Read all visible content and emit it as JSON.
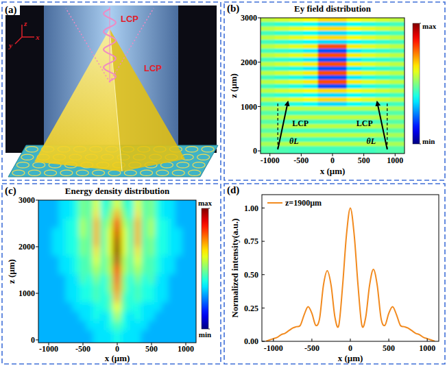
{
  "chart_data": [
    {
      "type": "diagram",
      "panel": "(a)",
      "labels": [
        "LCP",
        "LCP"
      ],
      "axes": [
        "z",
        "x",
        "y"
      ]
    },
    {
      "type": "heatmap",
      "panel": "(b)",
      "title": "Ey field distribution",
      "x_label": "x (μm)",
      "y_label": "z (μm)",
      "xlim": [
        -1150,
        1150
      ],
      "ylim": [
        -60,
        3000
      ],
      "xticks": [
        -1000,
        -500,
        0,
        500,
        1000
      ],
      "yticks": [
        0,
        1000,
        2000,
        3000
      ],
      "annotations": [
        "LCP",
        "θL",
        "LCP",
        "θL"
      ],
      "x": [
        -1035,
        -805,
        -575,
        -345,
        -115,
        115,
        345,
        575,
        805,
        1035
      ],
      "y": [
        2950,
        2850,
        2750,
        2650,
        2550,
        2450,
        2350,
        2250,
        2150,
        2050,
        1950,
        1850,
        1750,
        1650,
        1550,
        1450,
        1350,
        1250,
        1150,
        1050,
        950,
        850,
        750,
        650,
        550,
        450,
        350,
        250,
        150,
        50
      ],
      "z": [
        [
          0.56,
          0.58,
          0.6,
          0.62,
          0.66,
          0.66,
          0.62,
          0.6,
          0.58,
          0.56
        ],
        [
          0.44,
          0.42,
          0.4,
          0.38,
          0.34,
          0.34,
          0.38,
          0.4,
          0.42,
          0.44
        ],
        [
          0.56,
          0.58,
          0.6,
          0.62,
          0.66,
          0.66,
          0.62,
          0.6,
          0.58,
          0.56
        ],
        [
          0.44,
          0.42,
          0.4,
          0.38,
          0.34,
          0.34,
          0.38,
          0.4,
          0.42,
          0.44
        ],
        [
          0.56,
          0.58,
          0.6,
          0.62,
          0.66,
          0.66,
          0.62,
          0.6,
          0.58,
          0.56
        ],
        [
          0.44,
          0.42,
          0.4,
          0.38,
          0.34,
          0.34,
          0.38,
          0.4,
          0.42,
          0.44
        ],
        [
          0.56,
          0.58,
          0.6,
          0.64,
          0.8,
          0.8,
          0.64,
          0.6,
          0.58,
          0.56
        ],
        [
          0.44,
          0.42,
          0.4,
          0.36,
          0.2,
          0.2,
          0.36,
          0.4,
          0.42,
          0.44
        ],
        [
          0.56,
          0.58,
          0.6,
          0.64,
          0.8,
          0.8,
          0.64,
          0.6,
          0.58,
          0.56
        ],
        [
          0.44,
          0.42,
          0.4,
          0.36,
          0.2,
          0.2,
          0.36,
          0.4,
          0.42,
          0.44
        ],
        [
          0.56,
          0.58,
          0.6,
          0.64,
          0.8,
          0.8,
          0.64,
          0.6,
          0.58,
          0.56
        ],
        [
          0.44,
          0.42,
          0.4,
          0.36,
          0.2,
          0.2,
          0.36,
          0.4,
          0.42,
          0.44
        ],
        [
          0.56,
          0.58,
          0.6,
          0.64,
          0.8,
          0.8,
          0.64,
          0.6,
          0.58,
          0.56
        ],
        [
          0.44,
          0.42,
          0.4,
          0.36,
          0.2,
          0.2,
          0.36,
          0.4,
          0.42,
          0.44
        ],
        [
          0.56,
          0.58,
          0.6,
          0.64,
          0.8,
          0.8,
          0.64,
          0.6,
          0.58,
          0.56
        ],
        [
          0.44,
          0.42,
          0.4,
          0.36,
          0.2,
          0.2,
          0.36,
          0.4,
          0.42,
          0.44
        ],
        [
          0.56,
          0.58,
          0.6,
          0.62,
          0.66,
          0.66,
          0.62,
          0.6,
          0.58,
          0.56
        ],
        [
          0.44,
          0.42,
          0.4,
          0.38,
          0.34,
          0.34,
          0.38,
          0.4,
          0.42,
          0.44
        ],
        [
          0.56,
          0.58,
          0.6,
          0.62,
          0.66,
          0.66,
          0.62,
          0.6,
          0.58,
          0.56
        ],
        [
          0.44,
          0.42,
          0.4,
          0.38,
          0.34,
          0.34,
          0.38,
          0.4,
          0.42,
          0.44
        ],
        [
          0.54,
          0.55,
          0.56,
          0.56,
          0.56,
          0.56,
          0.56,
          0.56,
          0.55,
          0.54
        ],
        [
          0.46,
          0.45,
          0.44,
          0.44,
          0.44,
          0.44,
          0.44,
          0.44,
          0.45,
          0.46
        ],
        [
          0.54,
          0.55,
          0.56,
          0.56,
          0.56,
          0.56,
          0.56,
          0.56,
          0.55,
          0.54
        ],
        [
          0.46,
          0.45,
          0.44,
          0.44,
          0.44,
          0.44,
          0.44,
          0.44,
          0.45,
          0.46
        ],
        [
          0.54,
          0.55,
          0.56,
          0.56,
          0.56,
          0.56,
          0.56,
          0.56,
          0.55,
          0.54
        ],
        [
          0.46,
          0.45,
          0.44,
          0.44,
          0.44,
          0.44,
          0.44,
          0.44,
          0.45,
          0.46
        ],
        [
          0.54,
          0.55,
          0.56,
          0.56,
          0.56,
          0.56,
          0.56,
          0.56,
          0.55,
          0.54
        ],
        [
          0.46,
          0.45,
          0.44,
          0.44,
          0.44,
          0.44,
          0.44,
          0.44,
          0.45,
          0.46
        ],
        [
          0.54,
          0.55,
          0.56,
          0.56,
          0.56,
          0.56,
          0.56,
          0.56,
          0.55,
          0.54
        ],
        [
          0.46,
          0.45,
          0.44,
          0.44,
          0.44,
          0.44,
          0.44,
          0.44,
          0.45,
          0.46
        ]
      ],
      "colorbar": {
        "lim": [
          0,
          1
        ],
        "ticks": [
          {
            "value": 1,
            "label": "max"
          },
          {
            "value": 0,
            "label": "min"
          }
        ]
      }
    },
    {
      "type": "heatmap",
      "panel": "(c)",
      "title": "Energy density distribution",
      "x_label": "x (μm)",
      "y_label": "z (μm)",
      "xlim": [
        -1150,
        1150
      ],
      "ylim": [
        -60,
        3000
      ],
      "xticks": [
        -1000,
        -500,
        0,
        500,
        1000
      ],
      "yticks": [
        0,
        1000,
        2000,
        3000
      ],
      "x": [
        -1100,
        -1000,
        -900,
        -800,
        -700,
        -600,
        -500,
        -400,
        -300,
        -200,
        -100,
        0,
        100,
        200,
        300,
        400,
        500,
        600,
        700,
        800,
        900,
        1000,
        1100
      ],
      "y": [
        2900,
        2700,
        2500,
        2300,
        2100,
        1900,
        1700,
        1500,
        1300,
        1100,
        900,
        700,
        500,
        300,
        100
      ],
      "z": [
        [
          0.3,
          0.3,
          0.3,
          0.35,
          0.35,
          0.4,
          0.5,
          0.45,
          0.6,
          0.4,
          0.45,
          0.6,
          0.45,
          0.4,
          0.6,
          0.45,
          0.5,
          0.4,
          0.35,
          0.35,
          0.3,
          0.3,
          0.3
        ],
        [
          0.3,
          0.3,
          0.3,
          0.35,
          0.35,
          0.4,
          0.5,
          0.45,
          0.65,
          0.4,
          0.5,
          0.7,
          0.5,
          0.4,
          0.65,
          0.45,
          0.5,
          0.4,
          0.35,
          0.35,
          0.3,
          0.3,
          0.3
        ],
        [
          0.3,
          0.3,
          0.3,
          0.35,
          0.4,
          0.4,
          0.55,
          0.45,
          0.7,
          0.45,
          0.55,
          0.85,
          0.55,
          0.45,
          0.7,
          0.45,
          0.55,
          0.4,
          0.4,
          0.35,
          0.3,
          0.3,
          0.3
        ],
        [
          0.3,
          0.3,
          0.35,
          0.35,
          0.4,
          0.4,
          0.55,
          0.45,
          0.7,
          0.45,
          0.6,
          0.92,
          0.6,
          0.45,
          0.7,
          0.45,
          0.55,
          0.4,
          0.4,
          0.35,
          0.35,
          0.3,
          0.3
        ],
        [
          0.3,
          0.3,
          0.35,
          0.35,
          0.4,
          0.4,
          0.5,
          0.45,
          0.7,
          0.45,
          0.6,
          0.97,
          0.6,
          0.45,
          0.7,
          0.45,
          0.5,
          0.4,
          0.4,
          0.35,
          0.35,
          0.3,
          0.3
        ],
        [
          0.3,
          0.3,
          0.35,
          0.35,
          0.4,
          0.4,
          0.5,
          0.45,
          0.65,
          0.45,
          0.6,
          1.0,
          0.6,
          0.45,
          0.65,
          0.45,
          0.5,
          0.4,
          0.4,
          0.35,
          0.35,
          0.3,
          0.3
        ],
        [
          0.3,
          0.3,
          0.3,
          0.35,
          0.35,
          0.4,
          0.45,
          0.45,
          0.6,
          0.45,
          0.55,
          0.95,
          0.55,
          0.45,
          0.6,
          0.45,
          0.45,
          0.4,
          0.35,
          0.35,
          0.3,
          0.3,
          0.3
        ],
        [
          0.3,
          0.3,
          0.3,
          0.35,
          0.35,
          0.4,
          0.45,
          0.45,
          0.55,
          0.45,
          0.55,
          0.88,
          0.55,
          0.45,
          0.55,
          0.45,
          0.45,
          0.4,
          0.35,
          0.35,
          0.3,
          0.3,
          0.3
        ],
        [
          0.3,
          0.3,
          0.3,
          0.3,
          0.35,
          0.35,
          0.45,
          0.4,
          0.5,
          0.4,
          0.5,
          0.8,
          0.5,
          0.4,
          0.5,
          0.4,
          0.45,
          0.35,
          0.35,
          0.3,
          0.3,
          0.3,
          0.3
        ],
        [
          0.3,
          0.3,
          0.3,
          0.3,
          0.35,
          0.35,
          0.4,
          0.4,
          0.45,
          0.4,
          0.5,
          0.75,
          0.5,
          0.4,
          0.45,
          0.4,
          0.4,
          0.35,
          0.35,
          0.3,
          0.3,
          0.3,
          0.3
        ],
        [
          0.3,
          0.3,
          0.3,
          0.3,
          0.35,
          0.35,
          0.4,
          0.4,
          0.45,
          0.4,
          0.45,
          0.7,
          0.45,
          0.4,
          0.45,
          0.4,
          0.4,
          0.35,
          0.35,
          0.3,
          0.3,
          0.3,
          0.3
        ],
        [
          0.3,
          0.3,
          0.3,
          0.3,
          0.3,
          0.35,
          0.35,
          0.35,
          0.4,
          0.4,
          0.45,
          0.62,
          0.45,
          0.4,
          0.4,
          0.35,
          0.35,
          0.35,
          0.3,
          0.3,
          0.3,
          0.3,
          0.3
        ],
        [
          0.3,
          0.3,
          0.3,
          0.3,
          0.3,
          0.3,
          0.35,
          0.35,
          0.4,
          0.35,
          0.4,
          0.55,
          0.4,
          0.35,
          0.4,
          0.35,
          0.35,
          0.3,
          0.3,
          0.3,
          0.3,
          0.3,
          0.3
        ],
        [
          0.3,
          0.3,
          0.3,
          0.3,
          0.3,
          0.3,
          0.3,
          0.35,
          0.35,
          0.35,
          0.4,
          0.45,
          0.4,
          0.35,
          0.35,
          0.35,
          0.3,
          0.3,
          0.3,
          0.3,
          0.3,
          0.3,
          0.3
        ],
        [
          0.3,
          0.3,
          0.3,
          0.3,
          0.3,
          0.3,
          0.3,
          0.3,
          0.35,
          0.35,
          0.35,
          0.4,
          0.35,
          0.35,
          0.35,
          0.3,
          0.3,
          0.3,
          0.3,
          0.3,
          0.3,
          0.3,
          0.3
        ]
      ],
      "colorbar": {
        "lim": [
          0,
          1
        ],
        "ticks": [
          {
            "value": 1,
            "label": "max"
          },
          {
            "value": 0,
            "label": "min"
          }
        ]
      }
    },
    {
      "type": "line",
      "panel": "(d)",
      "x_label": "x (μm)",
      "y_label": "Normalized intensity(a.u.)",
      "xlim": [
        -1150,
        1150
      ],
      "ylim": [
        0,
        1.1
      ],
      "xticks": [
        -1000,
        -500,
        0,
        500,
        1000
      ],
      "yticks": [
        {
          "value": 0,
          "label": "0.00"
        },
        {
          "value": 0.25,
          "label": "0.25"
        },
        {
          "value": 0.5,
          "label": "0.50"
        },
        {
          "value": 0.75,
          "label": "0.75"
        },
        {
          "value": 1,
          "label": "1.00"
        }
      ],
      "legend": "upper left",
      "x": [
        -1100,
        -1050,
        -1000,
        -950,
        -900,
        -850,
        -800,
        -750,
        -700,
        -650,
        -600,
        -550,
        -500,
        -450,
        -400,
        -350,
        -300,
        -250,
        -200,
        -150,
        -100,
        -50,
        0,
        50,
        100,
        150,
        200,
        250,
        300,
        350,
        400,
        450,
        500,
        550,
        600,
        650,
        700,
        750,
        800,
        850,
        900,
        950,
        1000,
        1050,
        1100
      ],
      "series": [
        {
          "name": "z=1900μm",
          "color": "#f28a1e",
          "values": [
            0.0,
            0.01,
            0.02,
            0.03,
            0.05,
            0.06,
            0.08,
            0.1,
            0.11,
            0.12,
            0.2,
            0.26,
            0.21,
            0.12,
            0.17,
            0.42,
            0.53,
            0.42,
            0.18,
            0.12,
            0.42,
            0.8,
            1.0,
            0.8,
            0.42,
            0.12,
            0.18,
            0.42,
            0.54,
            0.42,
            0.17,
            0.12,
            0.21,
            0.26,
            0.2,
            0.12,
            0.11,
            0.1,
            0.08,
            0.06,
            0.05,
            0.03,
            0.02,
            0.01,
            0.0
          ]
        }
      ]
    }
  ]
}
